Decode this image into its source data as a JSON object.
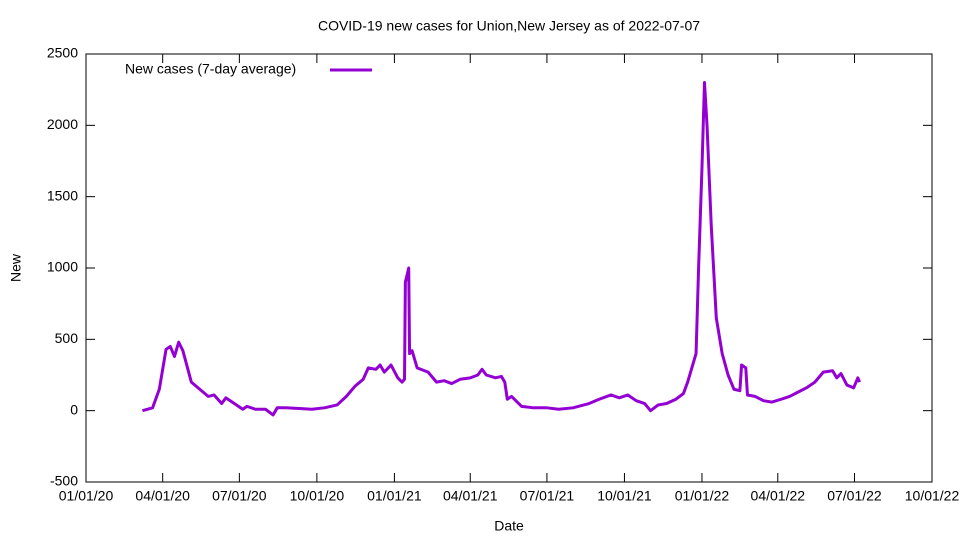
{
  "chart_data": {
    "type": "line",
    "title": "COVID-19 new cases for Union,New Jersey as of 2022-07-07",
    "x_label": "Date",
    "y_label": "New",
    "x": [
      "03/08/20",
      "03/20/20",
      "03/28/20",
      "04/05/20",
      "04/10/20",
      "04/15/20",
      "04/20/20",
      "04/25/20",
      "05/05/20",
      "05/15/20",
      "05/25/20",
      "06/01/20",
      "06/10/20",
      "06/15/20",
      "06/25/20",
      "07/05/20",
      "07/10/20",
      "07/20/20",
      "08/01/20",
      "08/10/20",
      "08/15/20",
      "08/25/20",
      "09/10/20",
      "09/25/20",
      "10/10/20",
      "10/25/20",
      "11/05/20",
      "11/15/20",
      "11/25/20",
      "12/01/20",
      "12/10/20",
      "12/15/20",
      "12/20/20",
      "12/28/20",
      "01/05/21",
      "01/10/21",
      "01/13/21",
      "01/14/21",
      "01/18/21",
      "01/19/21",
      "01/22/21",
      "01/28/21",
      "02/10/21",
      "02/20/21",
      "03/01/21",
      "03/10/21",
      "03/20/21",
      "04/01/21",
      "04/10/21",
      "04/15/21",
      "04/20/21",
      "05/01/21",
      "05/08/21",
      "05/12/21",
      "05/15/21",
      "05/20/21",
      "06/01/21",
      "06/15/21",
      "07/01/21",
      "07/15/21",
      "08/01/21",
      "08/20/21",
      "09/01/21",
      "09/15/21",
      "09/25/21",
      "10/05/21",
      "10/15/21",
      "10/25/21",
      "11/01/21",
      "11/10/21",
      "11/20/21",
      "12/01/21",
      "12/10/21",
      "12/15/21",
      "12/25/21",
      "12/28/21",
      "01/01/22",
      "01/04/22",
      "01/07/22",
      "01/12/22",
      "01/18/22",
      "01/25/22",
      "02/01/22",
      "02/08/22",
      "02/15/22",
      "02/17/22",
      "02/22/22",
      "02/24/22",
      "03/05/22",
      "03/15/22",
      "03/25/22",
      "04/05/22",
      "04/15/22",
      "04/25/22",
      "05/05/22",
      "05/15/22",
      "05/25/22",
      "06/05/22",
      "06/10/22",
      "06/15/22",
      "06/22/22",
      "06/30/22",
      "07/05/22",
      "07/07/22"
    ],
    "series": [
      {
        "name": "New cases (7-day average)",
        "color": "#9400d3",
        "values": [
          0,
          20,
          150,
          430,
          450,
          380,
          480,
          420,
          200,
          150,
          100,
          110,
          50,
          90,
          50,
          10,
          30,
          10,
          10,
          -30,
          20,
          20,
          15,
          10,
          20,
          40,
          100,
          170,
          220,
          300,
          290,
          320,
          270,
          320,
          230,
          200,
          220,
          900,
          1000,
          400,
          420,
          300,
          270,
          200,
          210,
          190,
          220,
          230,
          250,
          290,
          250,
          230,
          240,
          200,
          80,
          100,
          30,
          20,
          20,
          10,
          20,
          50,
          80,
          110,
          90,
          110,
          70,
          50,
          0,
          40,
          50,
          80,
          120,
          200,
          400,
          1000,
          1700,
          2300,
          2000,
          1300,
          650,
          400,
          250,
          150,
          140,
          320,
          300,
          110,
          100,
          70,
          60,
          80,
          100,
          130,
          160,
          200,
          270,
          280,
          230,
          260,
          180,
          160,
          230,
          200
        ]
      }
    ],
    "xlim": [
      "01/01/20",
      "10/01/22"
    ],
    "xticks": [
      "01/01/20",
      "04/01/20",
      "07/01/20",
      "10/01/20",
      "01/01/21",
      "04/01/21",
      "07/01/21",
      "10/01/21",
      "01/01/22",
      "04/01/22",
      "07/01/22",
      "10/01/22"
    ],
    "ylim": [
      -500,
      2500
    ],
    "yticks": [
      -500,
      0,
      500,
      1000,
      1500,
      2000,
      2500
    ],
    "grid": false,
    "legend": "top-left"
  }
}
